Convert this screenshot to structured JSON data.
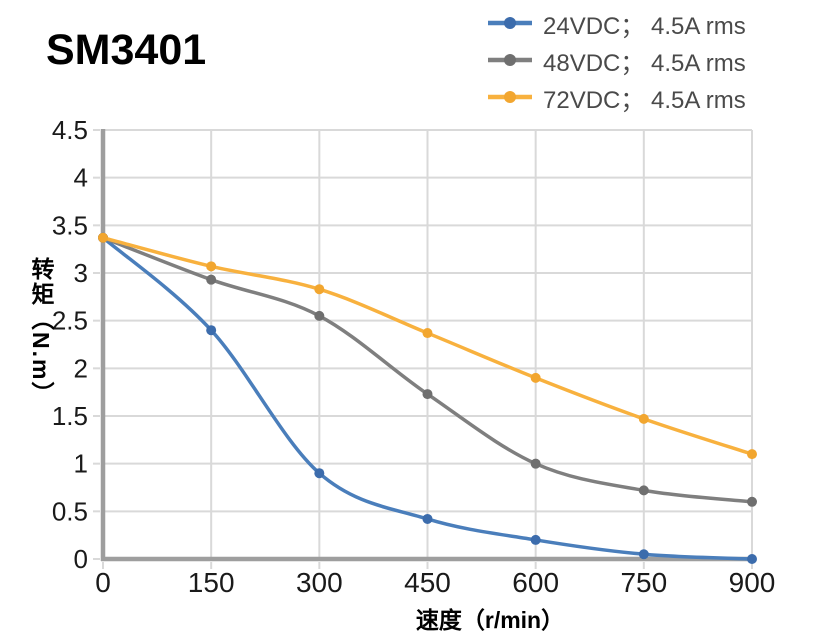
{
  "title": "SM3401",
  "chart_data": {
    "type": "line",
    "title": "SM3401",
    "xlabel": "速度（r/min）",
    "ylabel": "转矩（N.m）",
    "x": [
      0,
      150,
      300,
      450,
      600,
      750,
      900
    ],
    "x_tick_labels": [
      "0",
      "150",
      "300",
      "450",
      "600",
      "750",
      "900"
    ],
    "y_ticks": [
      0,
      0.5,
      1,
      1.5,
      2,
      2.5,
      3,
      3.5,
      4,
      4.5
    ],
    "y_tick_labels": [
      "0",
      "0.5",
      "1",
      "1.5",
      "2",
      "2.5",
      "3",
      "3.5",
      "4",
      "4.5"
    ],
    "xlim": [
      0,
      900
    ],
    "ylim": [
      0,
      4.5
    ],
    "grid": true,
    "smooth_lines": true,
    "legend_position": "top-right",
    "series": [
      {
        "name": "24VDC",
        "label": "24VDC； 4.5A rms",
        "color": "#4A7EBB",
        "marker_color": "#3C6CAC",
        "values": [
          3.37,
          2.4,
          0.9,
          0.42,
          0.2,
          0.05,
          0.0
        ]
      },
      {
        "name": "48VDC",
        "label": "48VDC； 4.5A rms",
        "color": "#7F7F7F",
        "marker_color": "#6F6F6F",
        "values": [
          3.37,
          2.93,
          2.55,
          1.73,
          1.0,
          0.72,
          0.6
        ]
      },
      {
        "name": "72VDC",
        "label": "72VDC； 4.5A rms",
        "color": "#F8B13E",
        "marker_color": "#F2A62F",
        "values": [
          3.37,
          3.07,
          2.83,
          2.37,
          1.9,
          1.47,
          1.1
        ]
      }
    ],
    "colors": {
      "gridline": "#D9D9D9",
      "axis_line": "#9E9E9E",
      "tick_label": "#1A1A1A",
      "legend_text": "#4A4A4A",
      "axis_title": "#000000",
      "title": "#000000"
    }
  }
}
